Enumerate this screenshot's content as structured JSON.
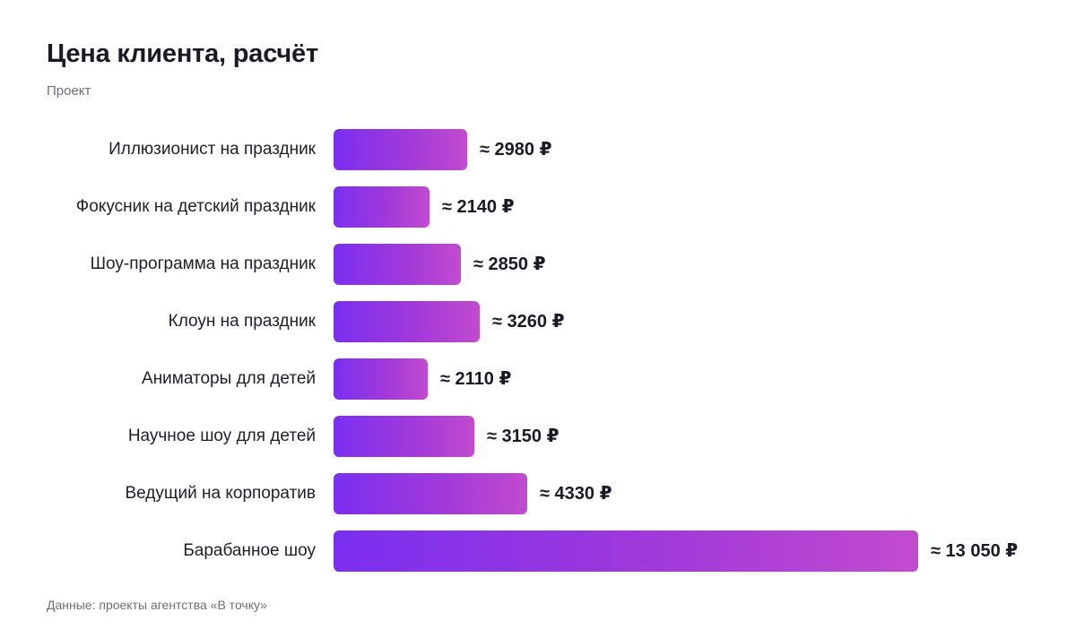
{
  "header": {
    "title": "Цена клиента, расчёт",
    "subtitle": "Проект"
  },
  "footer": {
    "source": "Данные: проекты агентства «В точку»"
  },
  "colors": {
    "bar_start": "#7a2ff0",
    "bar_end": "#c24bcf"
  },
  "chart_data": {
    "type": "bar",
    "orientation": "horizontal",
    "title": "Цена клиента, расчёт",
    "subtitle": "Проект",
    "categories": [
      "Иллюзионист на праздник",
      "Фокусник на детский праздник",
      "Шоу-программа на праздник",
      "Клоун на праздник",
      "Аниматоры для детей",
      "Научное шоу для детей",
      "Ведущий на корпоратив",
      "Барабанное шоу"
    ],
    "values": [
      2980,
      2140,
      2850,
      3260,
      2110,
      3150,
      4330,
      13050
    ],
    "value_labels": [
      "≈ 2980 ₽",
      "≈ 2140 ₽",
      "≈ 2850 ₽",
      "≈ 3260 ₽",
      "≈ 2110 ₽",
      "≈ 3150 ₽",
      "≈ 4330 ₽",
      "≈ 13 050 ₽"
    ],
    "unit": "₽",
    "xlim": [
      0,
      13050
    ],
    "grid": false,
    "legend": "none"
  }
}
